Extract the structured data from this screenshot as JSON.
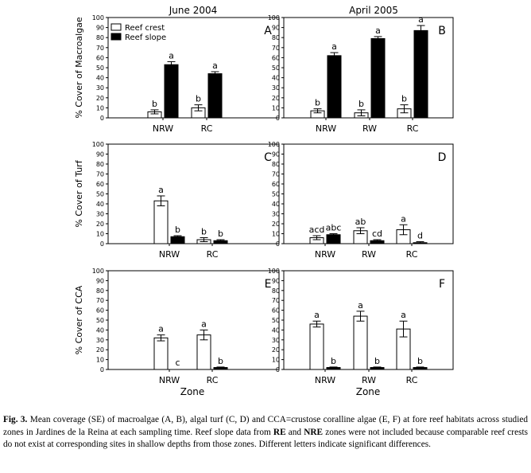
{
  "columns": [
    "June 2004",
    "April 2005"
  ],
  "xlabel": "Zone",
  "legend": {
    "crest": "Reef crest",
    "slope": "Reef slope"
  },
  "colors": {
    "crest": "#ffffff",
    "slope": "#000000"
  },
  "caption": {
    "label": "Fig. 3.",
    "part1": " Mean coverage (SE) of macroalgae (A, B), algal turf (C, D) and CCA=crustose coralline algae (E, F) at fore reef habitats across studied zones in Jardines de la Reina at each sampling time. Reef slope data from ",
    "bold1": "RE",
    "part2": " and ",
    "bold2": "NRE",
    "part3": " zones were not included because comparable reef crests do not exist at corresponding sites in shallow depths from those zones. Different letters indicate significant differences."
  },
  "chart_data": [
    {
      "panel": "A",
      "type": "bar",
      "ylabel": "% Cover of Macroalgae",
      "ylim": [
        0,
        100
      ],
      "yticks": [
        0,
        10,
        20,
        30,
        40,
        50,
        60,
        70,
        80,
        90,
        100
      ],
      "legend_position": "top-left",
      "categories": [
        "NRW",
        "RC"
      ],
      "series": [
        {
          "name": "Reef crest",
          "values": [
            6,
            10
          ],
          "se": [
            2,
            3
          ],
          "letters": [
            "b",
            "b"
          ]
        },
        {
          "name": "Reef slope",
          "values": [
            53,
            44
          ],
          "se": [
            3,
            2
          ],
          "letters": [
            "a",
            "a"
          ]
        }
      ]
    },
    {
      "panel": "B",
      "type": "bar",
      "ylim": [
        0,
        100
      ],
      "yticks": [
        0,
        10,
        20,
        30,
        40,
        50,
        60,
        70,
        80,
        90,
        100
      ],
      "categories": [
        "NRW",
        "RW",
        "RC"
      ],
      "series": [
        {
          "name": "Reef crest",
          "values": [
            7,
            5,
            9
          ],
          "se": [
            2,
            3,
            4
          ],
          "letters": [
            "b",
            "b",
            "b"
          ]
        },
        {
          "name": "Reef slope",
          "values": [
            62,
            79,
            87
          ],
          "se": [
            3,
            2,
            5
          ],
          "letters": [
            "a",
            "a",
            "a"
          ]
        }
      ]
    },
    {
      "panel": "C",
      "type": "bar",
      "ylabel": "% Cover of Turf",
      "ylim": [
        0,
        100
      ],
      "yticks": [
        0,
        10,
        20,
        30,
        40,
        50,
        60,
        70,
        80,
        90,
        100
      ],
      "categories": [
        "NRW",
        "RC"
      ],
      "series": [
        {
          "name": "Reef crest",
          "values": [
            43,
            4
          ],
          "se": [
            5,
            2
          ],
          "letters": [
            "a",
            "b"
          ]
        },
        {
          "name": "Reef slope",
          "values": [
            7,
            3
          ],
          "se": [
            1,
            1
          ],
          "letters": [
            "b",
            "b"
          ]
        }
      ]
    },
    {
      "panel": "D",
      "type": "bar",
      "ylim": [
        0,
        100
      ],
      "yticks": [
        0,
        10,
        20,
        30,
        40,
        50,
        60,
        70,
        80,
        90,
        100
      ],
      "categories": [
        "NRW",
        "RW",
        "RC"
      ],
      "series": [
        {
          "name": "Reef crest",
          "values": [
            6,
            13,
            14
          ],
          "se": [
            2,
            3,
            5
          ],
          "letters": [
            "acd",
            "ab",
            "a"
          ]
        },
        {
          "name": "Reef slope",
          "values": [
            9,
            3,
            1
          ],
          "se": [
            1,
            1,
            1
          ],
          "letters": [
            "abc",
            "cd",
            "d"
          ]
        }
      ]
    },
    {
      "panel": "E",
      "type": "bar",
      "ylabel": "% Cover of CCA",
      "ylim": [
        0,
        100
      ],
      "yticks": [
        0,
        10,
        20,
        30,
        40,
        50,
        60,
        70,
        80,
        90,
        100
      ],
      "categories": [
        "NRW",
        "RC"
      ],
      "series": [
        {
          "name": "Reef crest",
          "values": [
            32,
            35
          ],
          "se": [
            3,
            5
          ],
          "letters": [
            "a",
            "a"
          ]
        },
        {
          "name": "Reef slope",
          "values": [
            0,
            2
          ],
          "se": [
            0,
            0.5
          ],
          "letters": [
            "c",
            "b"
          ]
        }
      ]
    },
    {
      "panel": "F",
      "type": "bar",
      "ylim": [
        0,
        100
      ],
      "yticks": [
        0,
        10,
        20,
        30,
        40,
        50,
        60,
        70,
        80,
        90,
        100
      ],
      "categories": [
        "NRW",
        "RW",
        "RC"
      ],
      "series": [
        {
          "name": "Reef crest",
          "values": [
            46,
            54,
            41
          ],
          "se": [
            3,
            5,
            8
          ],
          "letters": [
            "a",
            "a",
            "a"
          ]
        },
        {
          "name": "Reef slope",
          "values": [
            2,
            2,
            2
          ],
          "se": [
            0.5,
            0.5,
            0.5
          ],
          "letters": [
            "b",
            "b",
            "b"
          ]
        }
      ]
    }
  ]
}
